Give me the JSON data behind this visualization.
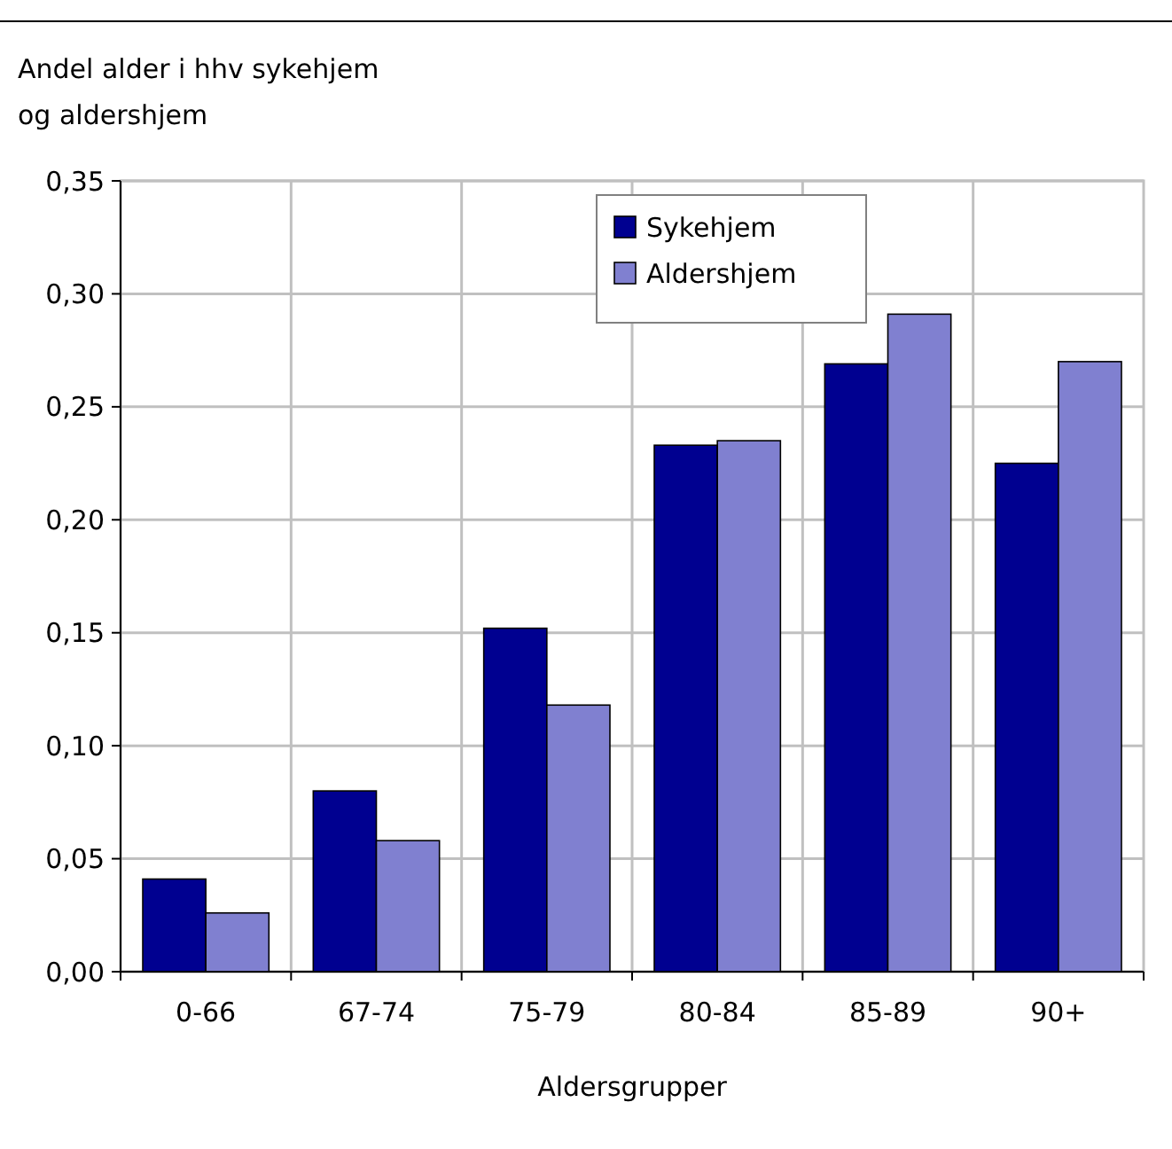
{
  "chart_data": {
    "type": "bar",
    "ylabel": "Andel alder i hhv sykehjem og aldershjem",
    "xlabel": "Aldersgrupper",
    "categories": [
      "0-66",
      "67-74",
      "75-79",
      "80-84",
      "85-89",
      "90+"
    ],
    "series": [
      {
        "name": "Sykehjem",
        "color": "#000090",
        "values": [
          0.041,
          0.08,
          0.152,
          0.233,
          0.269,
          0.225
        ]
      },
      {
        "name": "Aldershjem",
        "color": "#8080d0",
        "values": [
          0.026,
          0.058,
          0.118,
          0.235,
          0.291,
          0.27
        ]
      }
    ],
    "ylim": [
      0,
      0.35
    ],
    "yticks": [
      {
        "value": 0,
        "label": "0,00"
      },
      {
        "value": 0.05,
        "label": "0,05"
      },
      {
        "value": 0.1,
        "label": "0,10"
      },
      {
        "value": 0.15,
        "label": "0,15"
      },
      {
        "value": 0.2,
        "label": "0,20"
      },
      {
        "value": 0.25,
        "label": "0,25"
      },
      {
        "value": 0.3,
        "label": "0,30"
      },
      {
        "value": 0.35,
        "label": "0,35"
      }
    ],
    "grid": true,
    "legend": "top"
  }
}
